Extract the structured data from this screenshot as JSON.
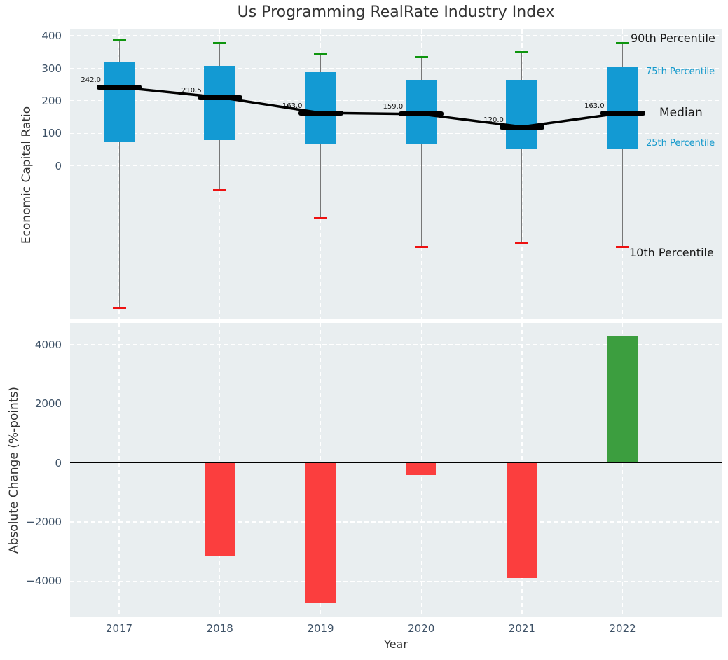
{
  "title": "Us Programming RealRate Industry Index",
  "figure": {
    "background": "#ffffff",
    "axes_background": "#e9eef0",
    "grid_color": "#ffffff",
    "tick_label_color": "#3d5166",
    "text_color": "#333333"
  },
  "chart_data": [
    {
      "type": "boxplot",
      "title": "Us Programming RealRate Industry Index",
      "ylabel": "Economic Capital Ratio",
      "categories": [
        "2017",
        "2018",
        "2019",
        "2020",
        "2021",
        "2022"
      ],
      "ytick_labels": [
        "400",
        "300",
        "200",
        "100",
        "0"
      ],
      "ytick_values": [
        400,
        300,
        200,
        100,
        0
      ],
      "ylim": [
        -472.3,
        419.5
      ],
      "grid": "white dashed horizontal at ticks and vertical at categories",
      "series": [
        {
          "name": "90th Percentile",
          "role": "p90",
          "values": [
            386,
            377,
            345,
            335,
            350,
            377
          ]
        },
        {
          "name": "75th Percentile",
          "role": "p75",
          "values": [
            318,
            307,
            288,
            264,
            264,
            304
          ]
        },
        {
          "name": "Median",
          "role": "median",
          "values": [
            242.0,
            210.5,
            163.0,
            159.0,
            120.0,
            163.0
          ]
        },
        {
          "name": "25th Percentile",
          "role": "p25",
          "values": [
            75,
            78,
            66,
            68,
            54,
            54
          ]
        },
        {
          "name": "10th Percentile",
          "role": "p10",
          "values": [
            -436,
            -75,
            -160,
            -250,
            -237,
            -250
          ]
        }
      ],
      "median_point_labels": [
        "242.0",
        "210.5",
        "163.0",
        "159.0",
        "120.0",
        "163.0"
      ],
      "percentile_labels": {
        "p90": "90th Percentile",
        "p75": "75th Percentile",
        "median": "Median",
        "p25": "25th Percentile",
        "p10": "10th Percentile"
      },
      "colors": {
        "box": "#139ad3",
        "cap_top": "#0e950e",
        "cap_bottom": "#ee1111",
        "median_line": "#000000",
        "whisker": "#777777",
        "blue_label": "#1499cc"
      }
    },
    {
      "type": "bar",
      "xlabel": "Year",
      "ylabel": "Absolute Change (%-points)",
      "categories": [
        "2017",
        "2018",
        "2019",
        "2020",
        "2021",
        "2022"
      ],
      "values": [
        0,
        -3150,
        -4750,
        -400,
        -3900,
        4300
      ],
      "ytick_labels": [
        "4000",
        "2000",
        "0",
        "−2000",
        "−4000"
      ],
      "ytick_values": [
        4000,
        2000,
        0,
        -2000,
        -4000
      ],
      "ylim": [
        -5224,
        4735
      ],
      "zero_line_color": "#000000",
      "colors": {
        "positive": "#3c9e3f",
        "negative": "#fb3e3e"
      }
    }
  ]
}
